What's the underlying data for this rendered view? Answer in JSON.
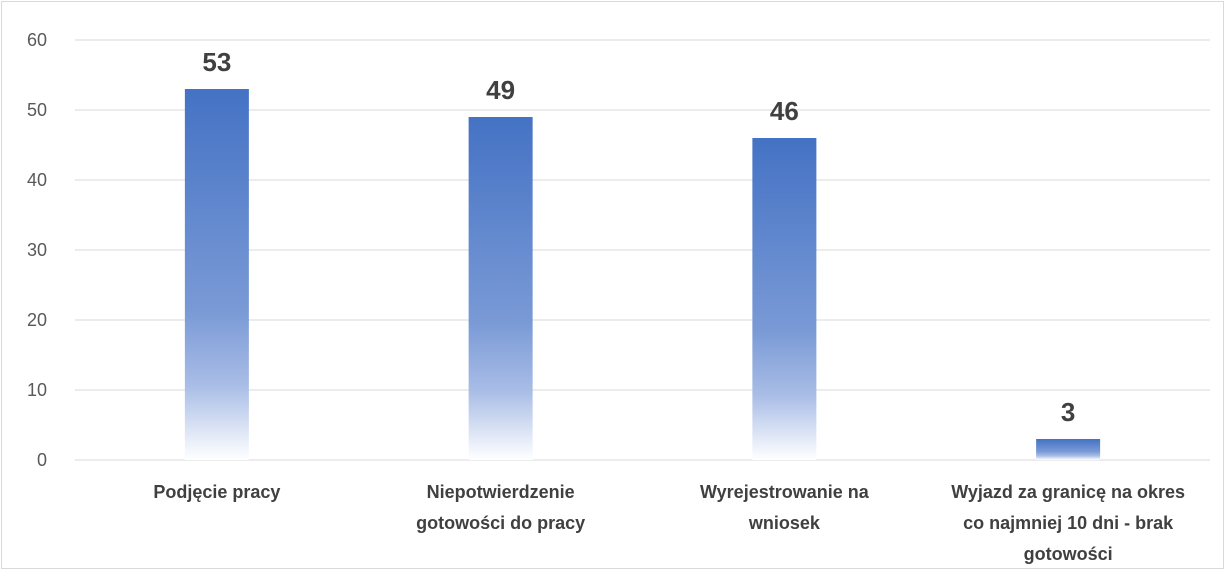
{
  "chart_data": {
    "type": "bar",
    "title": "",
    "xlabel": "",
    "ylabel": "",
    "categories": [
      [
        "Podjęcie pracy"
      ],
      [
        "Niepotwierdzenie",
        "gotowości do pracy"
      ],
      [
        "Wyrejestrowanie na",
        "wniosek"
      ],
      [
        "Wyjazd za granicę na okres",
        "co najmniej 10 dni - brak",
        "gotowości"
      ]
    ],
    "values": [
      53,
      49,
      46,
      3
    ],
    "ylim": [
      0,
      60
    ],
    "yticks": [
      0,
      10,
      20,
      30,
      40,
      50,
      60
    ],
    "grid": true,
    "legend": "none",
    "bar_color_top": "#4472c4",
    "bar_color_bottom": "#ffffff",
    "gridline_color": "#d9d9d9"
  }
}
